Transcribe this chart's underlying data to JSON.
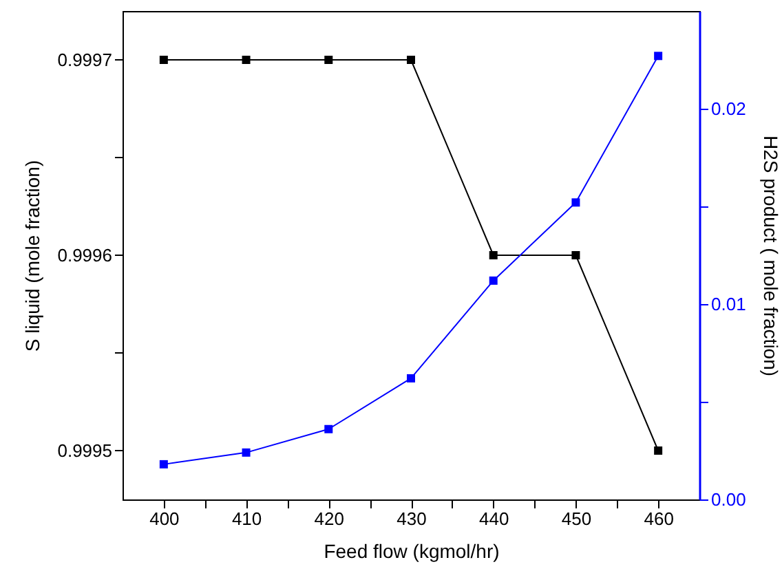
{
  "chart_data": {
    "type": "line",
    "xlabel": "Feed flow (kgmol/hr)",
    "ylabel": "S liquid (mole fraction)",
    "y2label": "H2S product ( mole fraction)",
    "x": [
      400,
      410,
      420,
      430,
      440,
      450,
      460
    ],
    "series": [
      {
        "color": "#000000",
        "values": [
          0.9997,
          0.9997,
          0.9997,
          0.9997,
          0.9996,
          0.9996,
          0.9995
        ]
      },
      {
        "color": "#0000ff",
        "axis": "y2",
        "values": [
          0.0018,
          0.0024,
          0.0036,
          0.0062,
          0.0112,
          0.0152,
          0.0227
        ]
      }
    ],
    "xlim": [
      395,
      465
    ],
    "xticks": [
      400,
      {
        "value": 405,
        "label": null
      },
      410,
      {
        "value": 415,
        "label": null
      },
      420,
      {
        "value": 425,
        "label": null
      },
      430,
      {
        "value": 435,
        "label": null
      },
      440,
      {
        "value": 445,
        "label": null
      },
      450,
      {
        "value": 455,
        "label": null
      },
      460
    ],
    "ylim": [
      0.999475,
      0.999725
    ],
    "yticks": [
      0.9995,
      {
        "value": 0.99955,
        "label": null
      },
      0.9996,
      {
        "value": 0.99965,
        "label": null
      },
      0.9997
    ],
    "y2lim": [
      0,
      0.025
    ],
    "y2ticks": [
      {
        "value": 0,
        "label": "0.00"
      },
      {
        "value": 0.005,
        "label": null
      },
      0.01,
      {
        "value": 0.015,
        "label": null
      },
      0.02
    ],
    "marker": "square",
    "line_style": "solid",
    "grid": false
  }
}
